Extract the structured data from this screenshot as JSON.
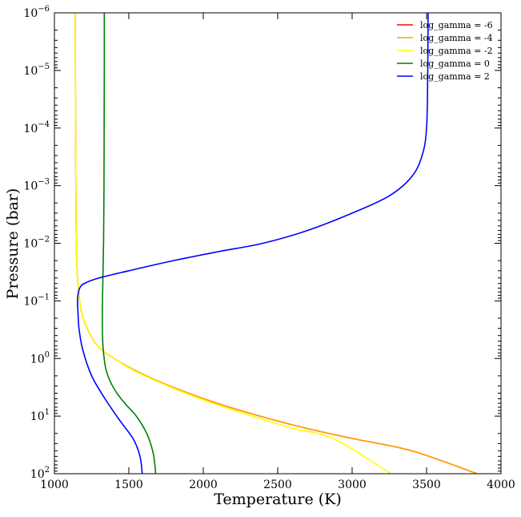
{
  "chart_data": {
    "type": "line",
    "title": "",
    "xlabel": "Temperature (K)",
    "ylabel": "Pressure (bar)",
    "xlim": [
      1000,
      4000
    ],
    "ylim": [
      1e-06,
      100
    ],
    "yscale": "log",
    "y_inverted": true,
    "grid": false,
    "legend_position": "top-right",
    "x_ticks": [
      1000,
      1500,
      2000,
      2500,
      3000,
      3500,
      4000
    ],
    "x_tick_labels": [
      "1000",
      "1500",
      "2000",
      "2500",
      "3000",
      "3500",
      "4000"
    ],
    "y_ticks": [
      1e-06,
      1e-05,
      0.0001,
      0.001,
      0.01,
      0.1,
      1,
      10,
      100
    ],
    "y_tick_labels": [
      {
        "base": "10",
        "exp": "−6"
      },
      {
        "base": "10",
        "exp": "−5"
      },
      {
        "base": "10",
        "exp": "−4"
      },
      {
        "base": "10",
        "exp": "−3"
      },
      {
        "base": "10",
        "exp": "−2"
      },
      {
        "base": "10",
        "exp": "−1"
      },
      {
        "base": "10",
        "exp": "0"
      },
      {
        "base": "10",
        "exp": "1"
      },
      {
        "base": "10",
        "exp": "2"
      }
    ],
    "series": [
      {
        "name": "log_gamma = -6",
        "color": "#ff0000",
        "x": [
          1140,
          1142,
          1145,
          1150,
          1160,
          1180,
          1220,
          1290,
          1400,
          1540,
          1700,
          1900,
          2120,
          2380,
          2680,
          3020,
          3400,
          3840
        ],
        "y": [
          1e-06,
          0.0001,
          0.003,
          0.02,
          0.06,
          0.15,
          0.3,
          0.6,
          1.0,
          1.6,
          2.5,
          4,
          6.3,
          10,
          16,
          25,
          40,
          100
        ]
      },
      {
        "name": "log_gamma = -4",
        "color": "#ffa500",
        "x": [
          1140,
          1142,
          1145,
          1150,
          1160,
          1180,
          1220,
          1290,
          1400,
          1540,
          1700,
          1900,
          2120,
          2380,
          2680,
          3020,
          3400,
          3840
        ],
        "y": [
          1e-06,
          0.0001,
          0.003,
          0.02,
          0.06,
          0.15,
          0.3,
          0.6,
          1.0,
          1.6,
          2.5,
          4,
          6.3,
          10,
          16,
          25,
          40,
          100
        ]
      },
      {
        "name": "log_gamma = -2",
        "color": "#ffff00",
        "x": [
          1140,
          1142,
          1145,
          1150,
          1160,
          1180,
          1220,
          1290,
          1400,
          1530,
          1690,
          1880,
          2090,
          2330,
          2590,
          2880,
          3260
        ],
        "y": [
          1e-06,
          0.0001,
          0.003,
          0.02,
          0.06,
          0.15,
          0.3,
          0.6,
          1.0,
          1.6,
          2.5,
          4,
          6.3,
          10,
          16,
          25,
          100
        ]
      },
      {
        "name": "log_gamma = 0",
        "color": "#008000",
        "x": [
          1335,
          1335,
          1334,
          1333,
          1330,
          1325,
          1322,
          1323,
          1330,
          1345,
          1375,
          1420,
          1480,
          1550,
          1620,
          1660,
          1675,
          1680
        ],
        "y": [
          1e-06,
          1e-05,
          0.0001,
          0.001,
          0.01,
          0.05,
          0.15,
          0.4,
          0.8,
          1.5,
          2.5,
          4,
          6.3,
          10,
          20,
          40,
          70,
          100
        ]
      },
      {
        "name": "log_gamma = 2",
        "color": "#0000ff",
        "x": [
          3510,
          3508,
          3500,
          3470,
          3400,
          3250,
          3000,
          2700,
          2400,
          2100,
          1800,
          1500,
          1300,
          1200,
          1170,
          1158,
          1155,
          1158,
          1165,
          1190,
          1250,
          1340,
          1440,
          1530,
          1575,
          1590
        ],
        "y": [
          1e-06,
          1e-05,
          0.0001,
          0.0003,
          0.0007,
          0.0015,
          0.003,
          0.006,
          0.01,
          0.014,
          0.02,
          0.03,
          0.04,
          0.05,
          0.06,
          0.08,
          0.1,
          0.15,
          0.3,
          0.7,
          2,
          5,
          12,
          25,
          50,
          100
        ]
      }
    ]
  }
}
